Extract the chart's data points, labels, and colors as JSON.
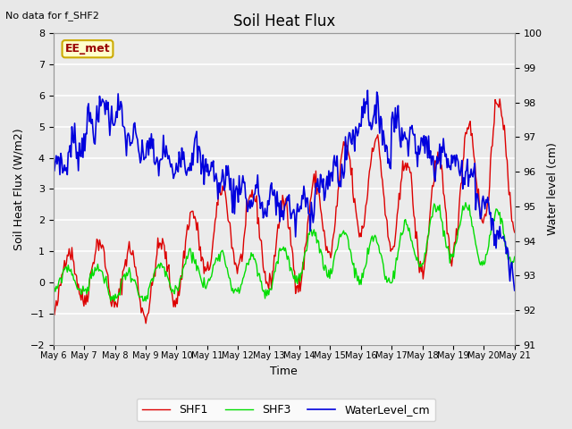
{
  "title": "Soil Heat Flux",
  "note": "No data for f_SHF2",
  "ylabel_left": "Soil Heat Flux (W/m2)",
  "ylabel_right": "Water level (cm)",
  "xlabel": "Time",
  "ylim_left": [
    -2.0,
    8.0
  ],
  "ylim_right": [
    91.0,
    100.0
  ],
  "yticks_left": [
    -2.0,
    -1.0,
    0.0,
    1.0,
    2.0,
    3.0,
    4.0,
    5.0,
    6.0,
    7.0,
    8.0
  ],
  "yticks_right": [
    91.0,
    92.0,
    93.0,
    94.0,
    95.0,
    96.0,
    97.0,
    98.0,
    99.0,
    100.0
  ],
  "xtick_labels": [
    "May 6",
    "May 7",
    "May 8",
    "May 9",
    "May 10",
    "May 11",
    "May 12",
    "May 13",
    "May 14",
    "May 15",
    "May 16",
    "May 17",
    "May 18",
    "May 19",
    "May 20",
    "May 21"
  ],
  "colors": {
    "SHF1": "#dd0000",
    "SHF3": "#00dd00",
    "WaterLevel_cm": "#0000dd"
  },
  "background_color": "#e8e8e8",
  "plot_bg_color": "#ebebeb",
  "grid_color": "#ffffff",
  "ee_met_label": "EE_met",
  "ee_met_box_color": "#ffffcc",
  "ee_met_text_color": "#990000",
  "ee_met_edge_color": "#ccaa00"
}
